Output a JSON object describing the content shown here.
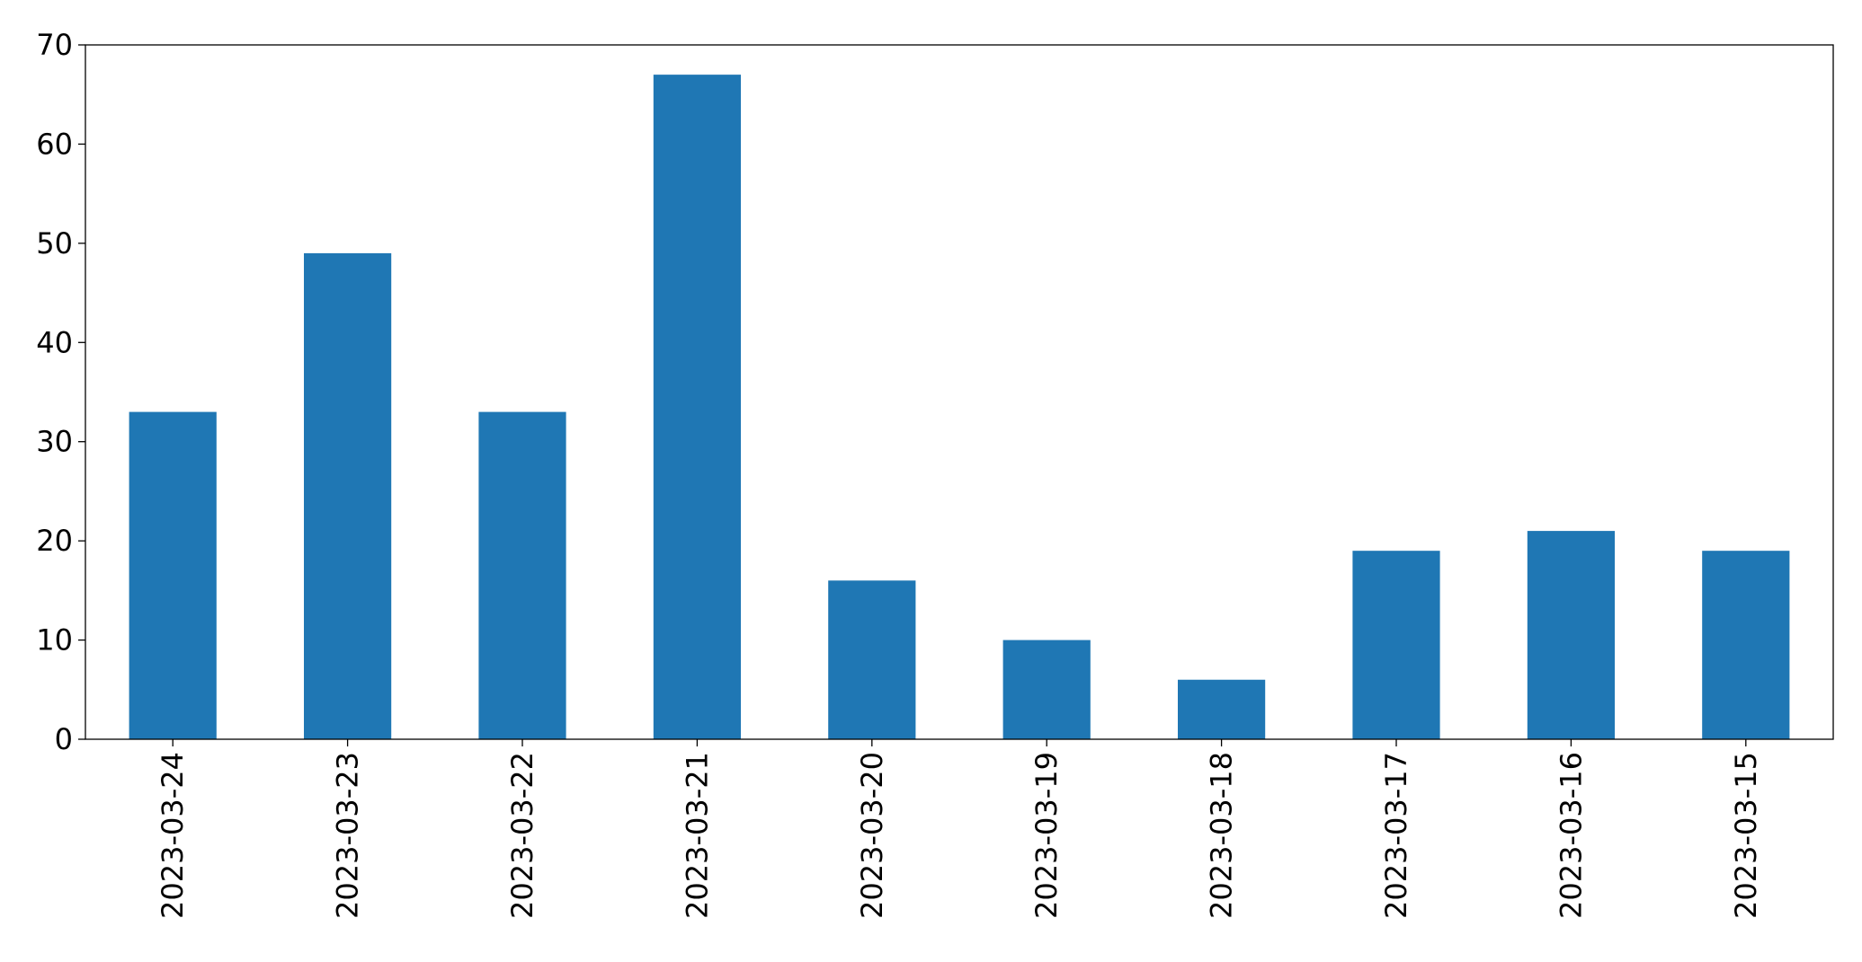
{
  "chart_data": {
    "type": "bar",
    "title": "",
    "xlabel": "",
    "ylabel": "",
    "categories": [
      "2023-03-24",
      "2023-03-23",
      "2023-03-22",
      "2023-03-21",
      "2023-03-20",
      "2023-03-19",
      "2023-03-18",
      "2023-03-17",
      "2023-03-16",
      "2023-03-15"
    ],
    "values": [
      33,
      49,
      33,
      67,
      16,
      10,
      6,
      19,
      21,
      19
    ],
    "ylim": [
      0,
      70
    ],
    "yticks": [
      0,
      10,
      20,
      30,
      40,
      50,
      60,
      70
    ],
    "grid": false,
    "legend": "none",
    "bar_color": "#1f77b4"
  }
}
